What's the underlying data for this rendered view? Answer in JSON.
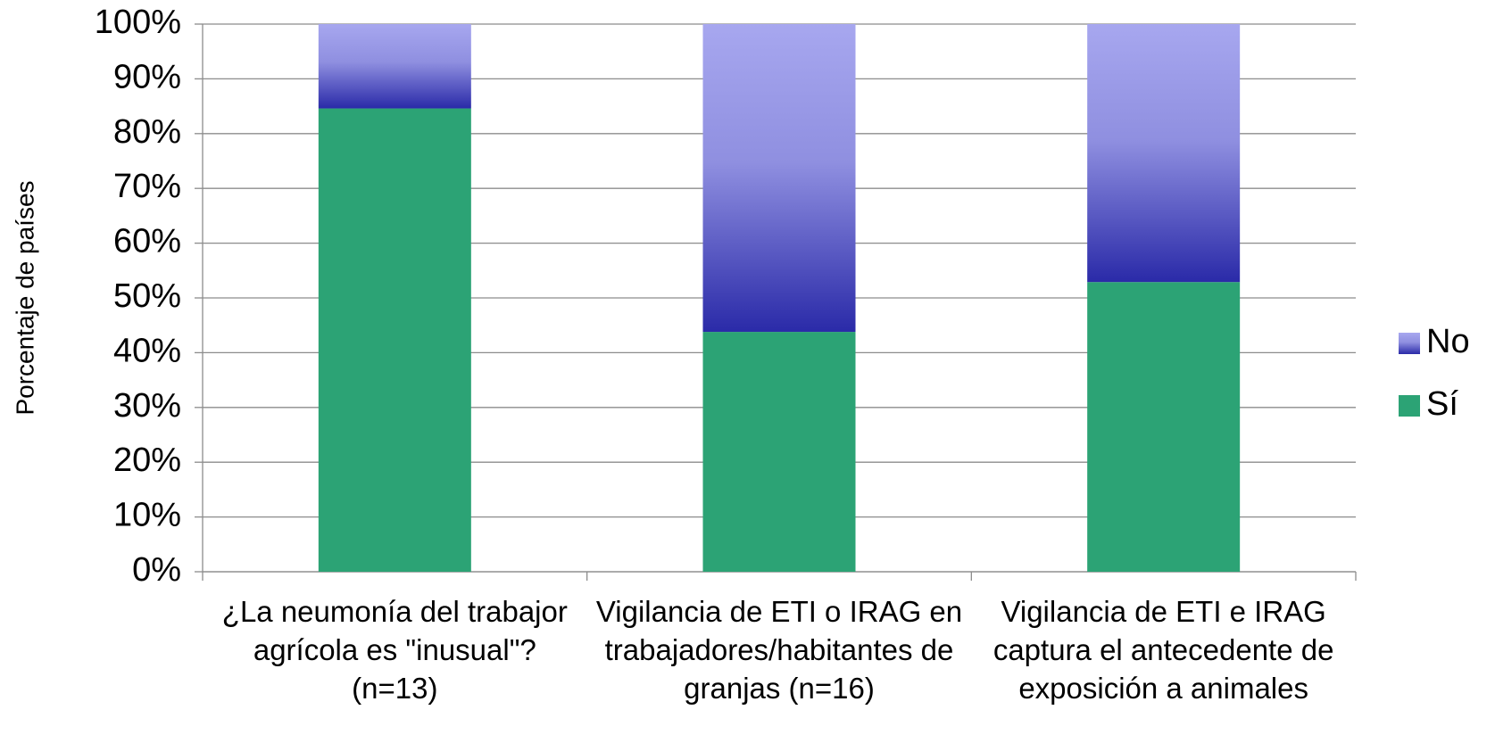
{
  "chart_data": {
    "type": "bar",
    "stacked": true,
    "y_label": "Porcentaje de países",
    "categories": [
      "¿La neumonía del trabajor agrícola es \"inusual\"? (n=13)",
      "Vigilancia de ETI o IRAG en trabajadores/habitantes de granjas (n=16)",
      "Vigilancia de ETI e IRAG captura el antecedente de exposición a animales"
    ],
    "series": [
      {
        "name": "Sí",
        "color": "#2ca375",
        "values": [
          84.6,
          43.8,
          52.9
        ]
      },
      {
        "name": "No",
        "color": "#2a2aa8",
        "values": [
          15.4,
          56.2,
          47.1
        ]
      }
    ],
    "ylim": [
      0,
      100
    ],
    "yticks": [
      {
        "value": 0,
        "label": "0%"
      },
      {
        "value": 10,
        "label": "10%"
      },
      {
        "value": 20,
        "label": "20%"
      },
      {
        "value": 30,
        "label": "30%"
      },
      {
        "value": 40,
        "label": "40%"
      },
      {
        "value": 50,
        "label": "50%"
      },
      {
        "value": 60,
        "label": "60%"
      },
      {
        "value": 70,
        "label": "70%"
      },
      {
        "value": 80,
        "label": "80%"
      },
      {
        "value": 90,
        "label": "90%"
      },
      {
        "value": 100,
        "label": "100%"
      }
    ],
    "grid": true,
    "legend": "right"
  }
}
